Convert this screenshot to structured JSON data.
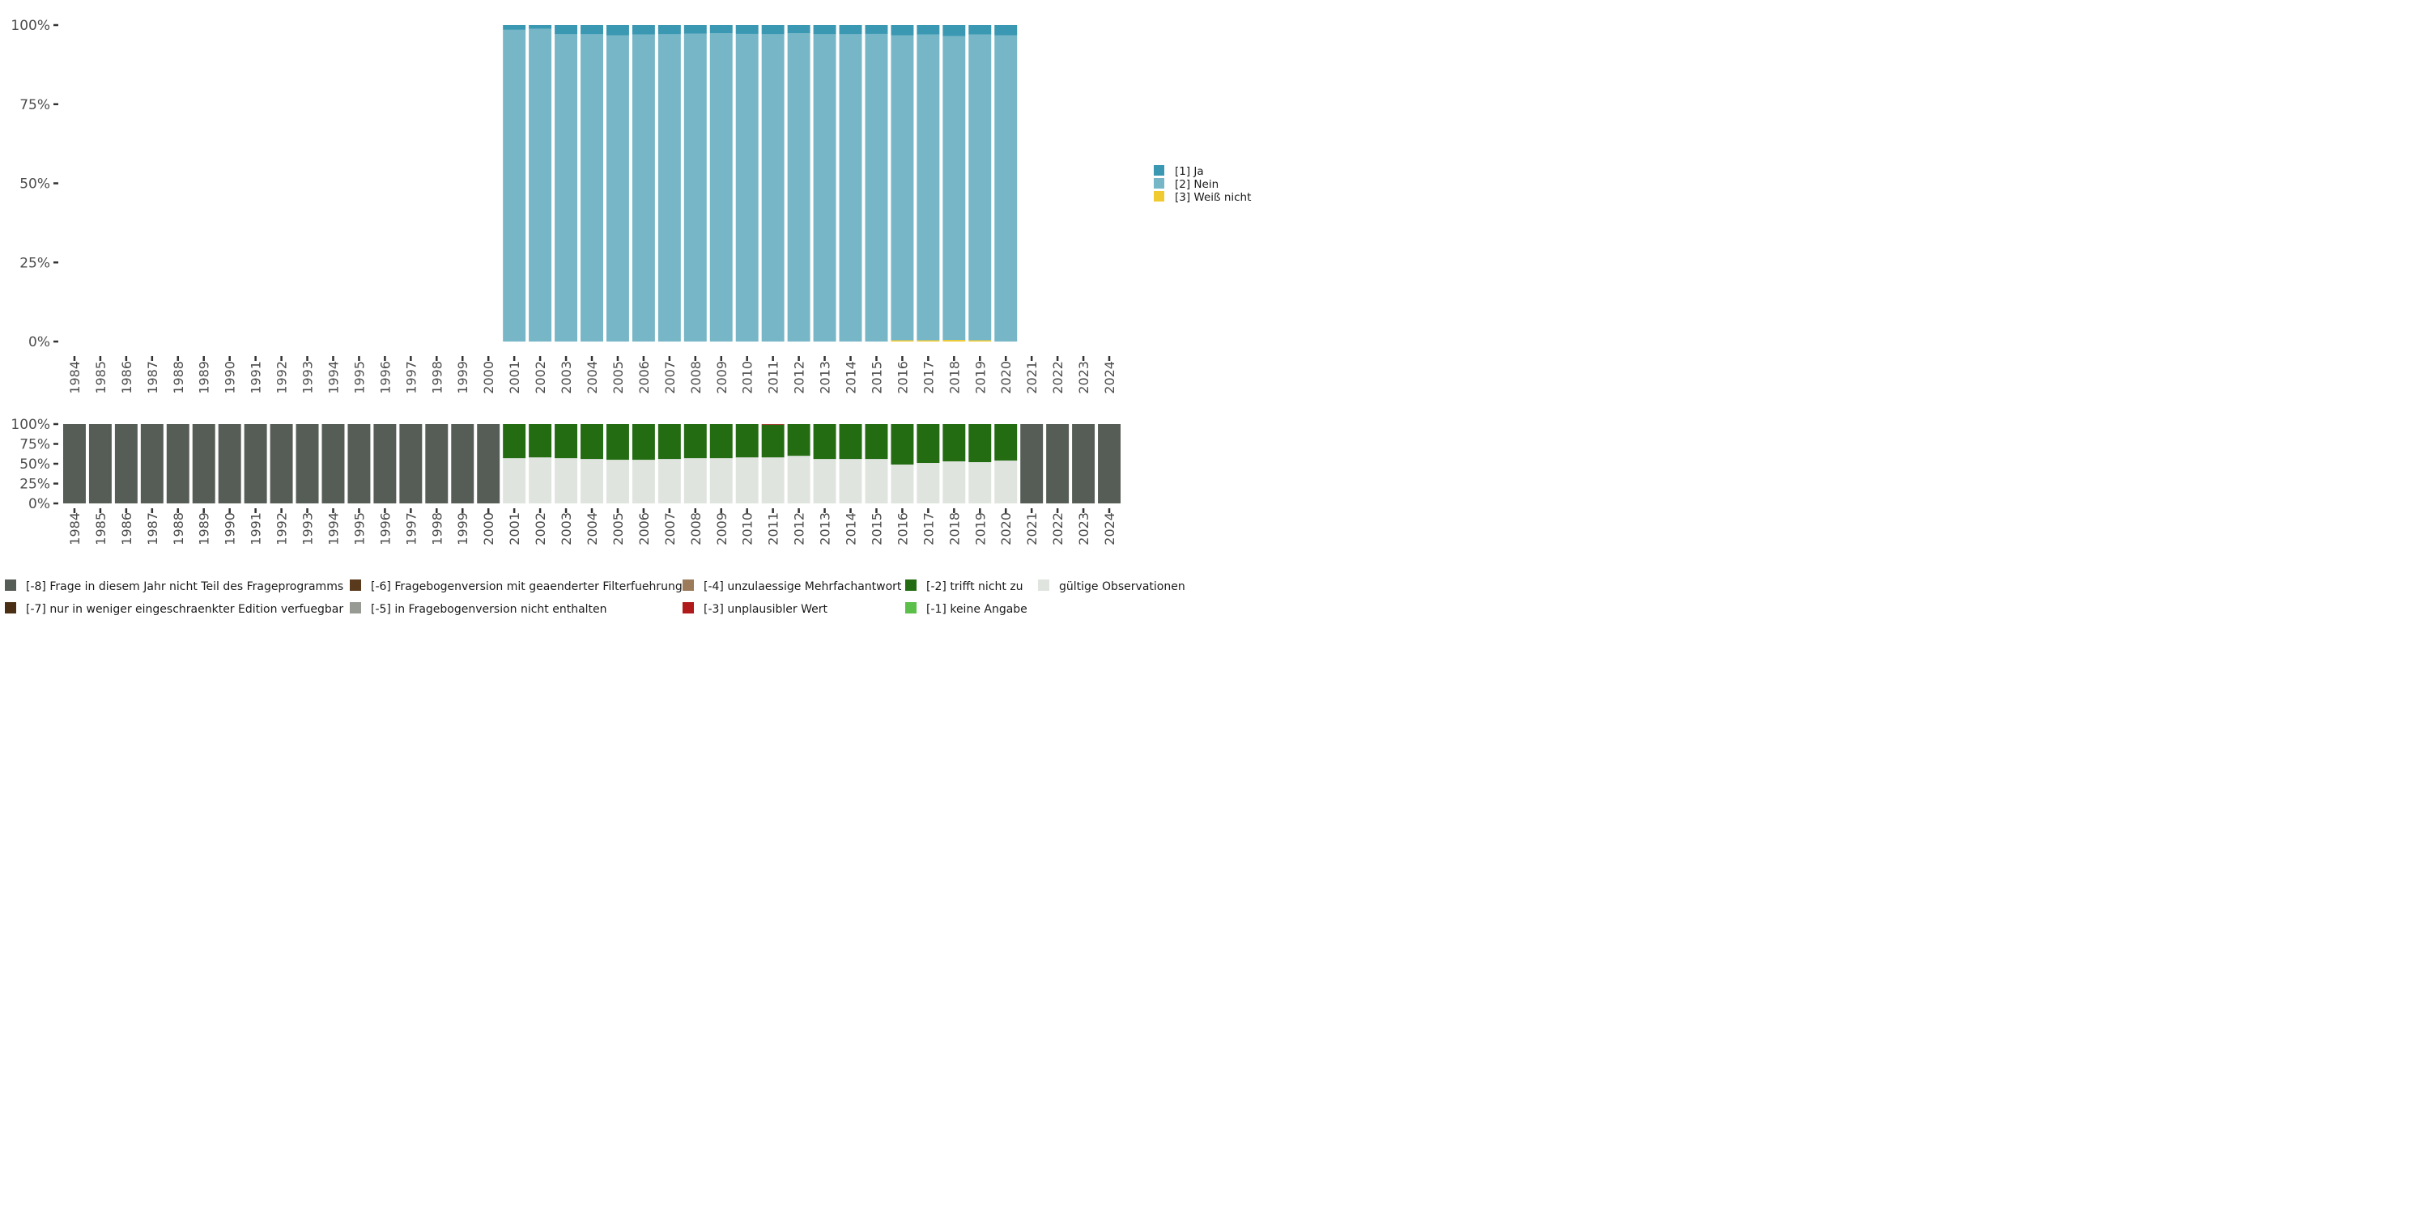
{
  "chart_data": [
    {
      "type": "bar",
      "stacked": true,
      "title": "",
      "xlabel": "",
      "ylabel": "",
      "ylim": [
        0,
        100
      ],
      "y_ticks": [
        "0%",
        "25%",
        "50%",
        "75%",
        "100%"
      ],
      "categories": [
        "1984",
        "1985",
        "1986",
        "1987",
        "1988",
        "1989",
        "1990",
        "1991",
        "1992",
        "1993",
        "1994",
        "1995",
        "1996",
        "1997",
        "1998",
        "1999",
        "2000",
        "2001",
        "2002",
        "2003",
        "2004",
        "2005",
        "2006",
        "2007",
        "2008",
        "2009",
        "2010",
        "2011",
        "2012",
        "2013",
        "2014",
        "2015",
        "2016",
        "2017",
        "2018",
        "2019",
        "2020",
        "2021",
        "2022",
        "2023",
        "2024"
      ],
      "legend_position": "right",
      "series": [
        {
          "name": "[3] Weiß nicht",
          "color": "#f0cb2f",
          "values": [
            0,
            0,
            0,
            0,
            0,
            0,
            0,
            0,
            0,
            0,
            0,
            0,
            0,
            0,
            0,
            0,
            0,
            0,
            0,
            0,
            0,
            0,
            0,
            0,
            0,
            0,
            0,
            0,
            0,
            0,
            0,
            0,
            0.4,
            0.4,
            0.5,
            0.4,
            0,
            0,
            0,
            0,
            0
          ]
        },
        {
          "name": "[2] Nein",
          "color": "#77b6c6",
          "values": [
            0,
            0,
            0,
            0,
            0,
            0,
            0,
            0,
            0,
            0,
            0,
            0,
            0,
            0,
            0,
            0,
            0,
            98.5,
            98.8,
            97.1,
            97.1,
            96.8,
            97.0,
            97.1,
            97.3,
            97.4,
            97.2,
            97.1,
            97.4,
            97.1,
            97.1,
            97.2,
            96.4,
            96.6,
            96.0,
            96.6,
            96.8,
            0,
            0,
            0,
            0
          ]
        },
        {
          "name": "[1] Ja",
          "color": "#3a98b2",
          "values": [
            0,
            0,
            0,
            0,
            0,
            0,
            0,
            0,
            0,
            0,
            0,
            0,
            0,
            0,
            0,
            0,
            0,
            1.5,
            1.2,
            2.9,
            2.9,
            3.2,
            3.0,
            2.9,
            2.7,
            2.6,
            2.8,
            2.9,
            2.6,
            2.9,
            2.9,
            2.8,
            3.2,
            3.0,
            3.5,
            3.0,
            3.2,
            0,
            0,
            0,
            0
          ]
        }
      ]
    },
    {
      "type": "bar",
      "stacked": true,
      "title": "",
      "xlabel": "",
      "ylabel": "",
      "ylim": [
        0,
        100
      ],
      "y_ticks": [
        "0%",
        "25%",
        "50%",
        "75%",
        "100%"
      ],
      "categories": [
        "1984",
        "1985",
        "1986",
        "1987",
        "1988",
        "1989",
        "1990",
        "1991",
        "1992",
        "1993",
        "1994",
        "1995",
        "1996",
        "1997",
        "1998",
        "1999",
        "2000",
        "2001",
        "2002",
        "2003",
        "2004",
        "2005",
        "2006",
        "2007",
        "2008",
        "2009",
        "2010",
        "2011",
        "2012",
        "2013",
        "2014",
        "2015",
        "2016",
        "2017",
        "2018",
        "2019",
        "2020",
        "2021",
        "2022",
        "2023",
        "2024"
      ],
      "legend_position": "bottom",
      "series": [
        {
          "name": "gültige Observationen",
          "color": "#e0e4df",
          "values": [
            0,
            0,
            0,
            0,
            0,
            0,
            0,
            0,
            0,
            0,
            0,
            0,
            0,
            0,
            0,
            0,
            0,
            57,
            58,
            57,
            56,
            55,
            55,
            56,
            57,
            57,
            58,
            58,
            60,
            56,
            56,
            56,
            49,
            51,
            53,
            52,
            54,
            0,
            0,
            0,
            0
          ]
        },
        {
          "name": "[-1] keine Angabe",
          "color": "#5bbf4a",
          "values": [
            0,
            0,
            0,
            0,
            0,
            0,
            0,
            0,
            0,
            0,
            0,
            0,
            0,
            0,
            0,
            0,
            0,
            0,
            0,
            0,
            0,
            0,
            0,
            0,
            0,
            0,
            0,
            0,
            0,
            0,
            0,
            0,
            0,
            0,
            0,
            0,
            0,
            0,
            0,
            0,
            0
          ]
        },
        {
          "name": "[-2] trifft nicht zu",
          "color": "#236c12",
          "values": [
            0,
            0,
            0,
            0,
            0,
            0,
            0,
            0,
            0,
            0,
            0,
            0,
            0,
            0,
            0,
            0,
            0,
            43,
            42,
            43,
            44,
            45,
            45,
            44,
            43,
            43,
            42,
            41.3,
            40,
            44,
            44,
            44,
            51,
            49,
            47,
            48,
            46,
            0,
            0,
            0,
            0
          ]
        },
        {
          "name": "[-3] unplausibler Wert",
          "color": "#b01a1a",
          "values": [
            0,
            0,
            0,
            0,
            0,
            0,
            0,
            0,
            0,
            0,
            0,
            0,
            0,
            0,
            0,
            0,
            0,
            0,
            0,
            0,
            0,
            0,
            0,
            0,
            0,
            0,
            0,
            0.7,
            0,
            0,
            0,
            0,
            0,
            0,
            0,
            0,
            0,
            0,
            0,
            0,
            0
          ]
        },
        {
          "name": "[-4] unzulaessige Mehrfachantwort",
          "color": "#9c7b5a",
          "values": [
            0,
            0,
            0,
            0,
            0,
            0,
            0,
            0,
            0,
            0,
            0,
            0,
            0,
            0,
            0,
            0,
            0,
            0,
            0,
            0,
            0,
            0,
            0,
            0,
            0,
            0,
            0,
            0,
            0,
            0,
            0,
            0,
            0,
            0,
            0,
            0,
            0,
            0,
            0,
            0,
            0
          ]
        },
        {
          "name": "[-5] in Fragebogenversion nicht enthalten",
          "color": "#969a93",
          "values": [
            0,
            0,
            0,
            0,
            0,
            0,
            0,
            0,
            0,
            0,
            0,
            0,
            0,
            0,
            0,
            0,
            0,
            0,
            0,
            0,
            0,
            0,
            0,
            0,
            0,
            0,
            0,
            0,
            0,
            0,
            0,
            0,
            0,
            0,
            0,
            0,
            0,
            0,
            0,
            0,
            0
          ]
        },
        {
          "name": "[-6] Fragebogenversion mit geaenderter Filterfuehrung",
          "color": "#5a3a1c",
          "values": [
            0,
            0,
            0,
            0,
            0,
            0,
            0,
            0,
            0,
            0,
            0,
            0,
            0,
            0,
            0,
            0,
            0,
            0,
            0,
            0,
            0,
            0,
            0,
            0,
            0,
            0,
            0,
            0,
            0,
            0,
            0,
            0,
            0,
            0,
            0,
            0,
            0,
            0,
            0,
            0,
            0
          ]
        },
        {
          "name": "[-7] nur in weniger eingeschraenkter Edition verfuegbar",
          "color": "#4a2f14",
          "values": [
            0,
            0,
            0,
            0,
            0,
            0,
            0,
            0,
            0,
            0,
            0,
            0,
            0,
            0,
            0,
            0,
            0,
            0,
            0,
            0,
            0,
            0,
            0,
            0,
            0,
            0,
            0,
            0,
            0,
            0,
            0,
            0,
            0,
            0,
            0,
            0,
            0,
            0,
            0,
            0,
            0
          ]
        },
        {
          "name": "[-8] Frage in diesem Jahr nicht Teil des Frageprogramms",
          "color": "#565c56",
          "values": [
            100,
            100,
            100,
            100,
            100,
            100,
            100,
            100,
            100,
            100,
            100,
            100,
            100,
            100,
            100,
            100,
            100,
            0,
            0,
            0,
            0,
            0,
            0,
            0,
            0,
            0,
            0,
            0,
            0,
            0,
            0,
            0,
            0,
            0,
            0,
            0,
            0,
            100,
            100,
            100,
            100
          ]
        }
      ]
    }
  ],
  "legend_top_order": [
    "[1] Ja",
    "[2] Nein",
    "[3] Weiß nicht"
  ],
  "legend_bottom_order": [
    "[-8] Frage in diesem Jahr nicht Teil des Frageprogramms",
    "[-6] Fragebogenversion mit geaenderter Filterfuehrung",
    "[-4] unzulaessige Mehrfachantwort",
    "[-2] trifft nicht zu",
    "gültige Observationen",
    "[-7] nur in weniger eingeschraenkter Edition verfuegbar",
    "[-5] in Fragebogenversion nicht enthalten",
    "[-3] unplausibler Wert",
    "[-1] keine Angabe"
  ]
}
